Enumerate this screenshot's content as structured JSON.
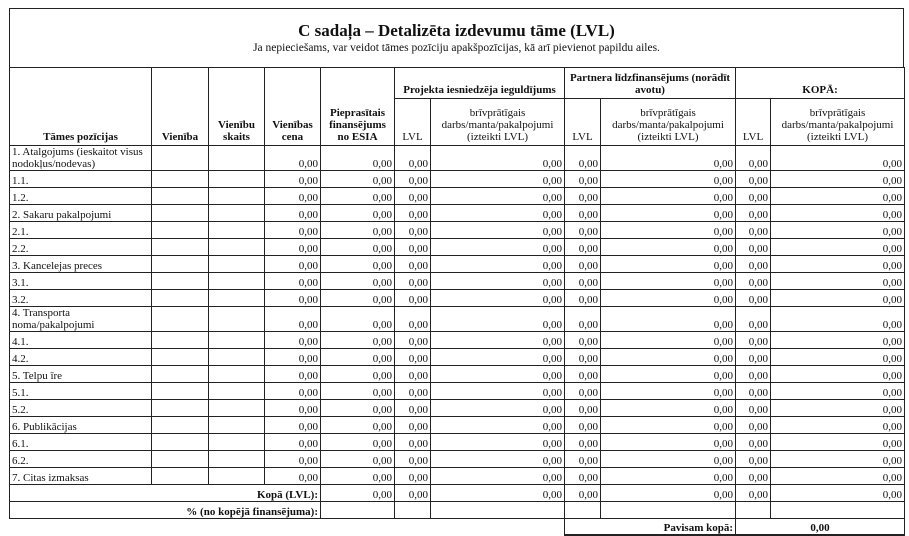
{
  "title": "C sadaļa – Detalizēta izdevumu tāme (LVL)",
  "subtitle": "Ja nepieciešams, var veidot tāmes pozīciju apakšpozīcijas, kā arī pievienot papildu ailes.",
  "headers": {
    "positions": "Tāmes pozīcijas",
    "unit": "Vienība",
    "unit_count": "Vienību skaits",
    "unit_price": "Vienības cena",
    "requested": "Pieprasītais finansējums no ESIA",
    "group_applicant": "Projekta iesniedzēja ieguldījums",
    "group_partner": "Partnera līdzfinansējums (norādīt avotu)",
    "group_total": "KOPĀ:",
    "lvl": "LVL",
    "voluntary": "brīvprātīgais darbs/manta/pakalpojumi (izteikti LVL)"
  },
  "rows": [
    {
      "label": "1. Atalgojums (ieskaitot visus nodokļus/nodevas)",
      "double": true,
      "values": [
        "0,00",
        "0,00",
        "0,00",
        "0,00",
        "0,00",
        "0,00",
        "0,00",
        "0,00"
      ]
    },
    {
      "label": "1.1.",
      "values": [
        "0,00",
        "0,00",
        "0,00",
        "0,00",
        "0,00",
        "0,00",
        "0,00",
        "0,00"
      ]
    },
    {
      "label": "1.2.",
      "values": [
        "0,00",
        "0,00",
        "0,00",
        "0,00",
        "0,00",
        "0,00",
        "0,00",
        "0,00"
      ]
    },
    {
      "label": "2. Sakaru pakalpojumi",
      "values": [
        "0,00",
        "0,00",
        "0,00",
        "0,00",
        "0,00",
        "0,00",
        "0,00",
        "0,00"
      ]
    },
    {
      "label": "2.1.",
      "values": [
        "0,00",
        "0,00",
        "0,00",
        "0,00",
        "0,00",
        "0,00",
        "0,00",
        "0,00"
      ]
    },
    {
      "label": "2.2.",
      "values": [
        "0,00",
        "0,00",
        "0,00",
        "0,00",
        "0,00",
        "0,00",
        "0,00",
        "0,00"
      ]
    },
    {
      "label": "3. Kancelejas preces",
      "values": [
        "0,00",
        "0,00",
        "0,00",
        "0,00",
        "0,00",
        "0,00",
        "0,00",
        "0,00"
      ]
    },
    {
      "label": "3.1.",
      "values": [
        "0,00",
        "0,00",
        "0,00",
        "0,00",
        "0,00",
        "0,00",
        "0,00",
        "0,00"
      ]
    },
    {
      "label": "3.2.",
      "values": [
        "0,00",
        "0,00",
        "0,00",
        "0,00",
        "0,00",
        "0,00",
        "0,00",
        "0,00"
      ]
    },
    {
      "label": "4. Transporta noma/pakalpojumi",
      "double": true,
      "values": [
        "0,00",
        "0,00",
        "0,00",
        "0,00",
        "0,00",
        "0,00",
        "0,00",
        "0,00"
      ]
    },
    {
      "label": "4.1.",
      "values": [
        "0,00",
        "0,00",
        "0,00",
        "0,00",
        "0,00",
        "0,00",
        "0,00",
        "0,00"
      ]
    },
    {
      "label": "4.2.",
      "values": [
        "0,00",
        "0,00",
        "0,00",
        "0,00",
        "0,00",
        "0,00",
        "0,00",
        "0,00"
      ]
    },
    {
      "label": "5. Telpu īre",
      "values": [
        "0,00",
        "0,00",
        "0,00",
        "0,00",
        "0,00",
        "0,00",
        "0,00",
        "0,00"
      ]
    },
    {
      "label": "5.1.",
      "values": [
        "0,00",
        "0,00",
        "0,00",
        "0,00",
        "0,00",
        "0,00",
        "0,00",
        "0,00"
      ]
    },
    {
      "label": "5.2.",
      "values": [
        "0,00",
        "0,00",
        "0,00",
        "0,00",
        "0,00",
        "0,00",
        "0,00",
        "0,00"
      ]
    },
    {
      "label": "6. Publikācijas",
      "values": [
        "0,00",
        "0,00",
        "0,00",
        "0,00",
        "0,00",
        "0,00",
        "0,00",
        "0,00"
      ]
    },
    {
      "label": "6.1.",
      "values": [
        "0,00",
        "0,00",
        "0,00",
        "0,00",
        "0,00",
        "0,00",
        "0,00",
        "0,00"
      ]
    },
    {
      "label": "6.2.",
      "values": [
        "0,00",
        "0,00",
        "0,00",
        "0,00",
        "0,00",
        "0,00",
        "0,00",
        "0,00"
      ]
    },
    {
      "label": "7. Citas izmaksas",
      "values": [
        "0,00",
        "0,00",
        "0,00",
        "0,00",
        "0,00",
        "0,00",
        "0,00",
        "0,00"
      ]
    }
  ],
  "total": {
    "label": "Kopā (LVL):",
    "values": [
      "0,00",
      "0,00",
      "0,00",
      "0,00",
      "0,00",
      "0,00",
      "0,00"
    ]
  },
  "percent": {
    "label": "% (no kopējā finansējuma):"
  },
  "grand_total": {
    "label": "Pavisam kopā:",
    "value": "0,00"
  }
}
